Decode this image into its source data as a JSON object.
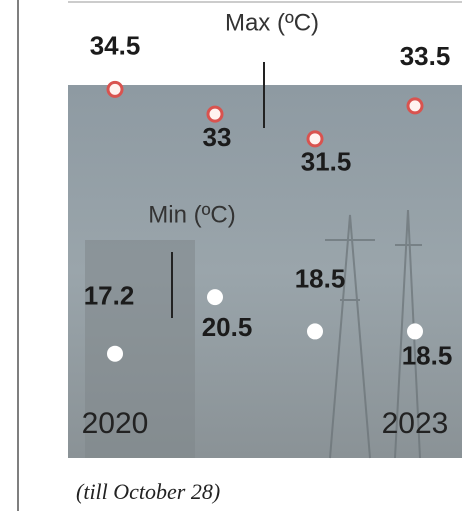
{
  "chart_data": {
    "type": "scatter",
    "categories": [
      "2020",
      null,
      null,
      "2023"
    ],
    "series": [
      {
        "name": "Max (ºC)",
        "color": "#d9534f",
        "values": [
          34.5,
          33,
          31.5,
          33.5
        ]
      },
      {
        "name": "Min (ºC)",
        "color": "#ffffff",
        "values": [
          17.2,
          20.5,
          18.5,
          18.5
        ],
        "axis": "y2"
      }
    ],
    "ylim": [
      12,
      37.5
    ],
    "y2lim": [
      11,
      35.5
    ],
    "note": "(till October 28)"
  }
}
